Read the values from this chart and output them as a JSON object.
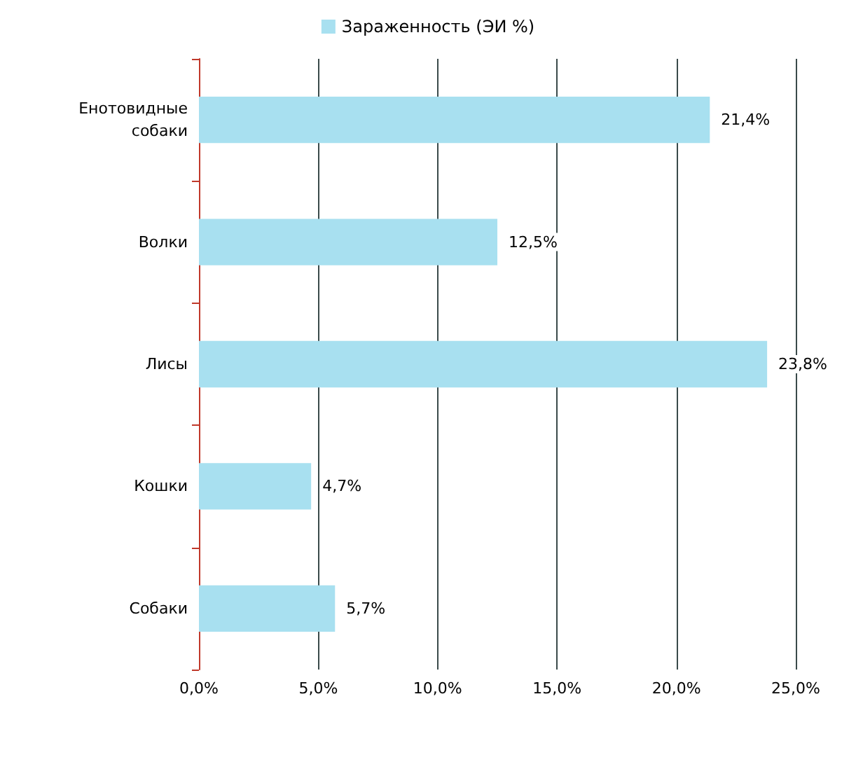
{
  "chart_data": {
    "type": "bar",
    "orientation": "horizontal",
    "categories": [
      "Енотовидные собаки",
      "Волки",
      "Лисы",
      "Кошки",
      "Собаки"
    ],
    "series": [
      {
        "name": "Зараженность (ЭИ %)",
        "color": "#a8e0f0",
        "values": [
          21.4,
          12.5,
          23.8,
          4.7,
          5.7
        ],
        "value_labels": [
          "21,4%",
          "12,5%",
          "23,8%",
          "4,7%",
          "5,7%"
        ]
      }
    ],
    "xlim": [
      0,
      25
    ],
    "xticks": [
      {
        "value": 0,
        "label": "0,0%"
      },
      {
        "value": 5,
        "label": "5,0%"
      },
      {
        "value": 10,
        "label": "10,0%"
      },
      {
        "value": 15,
        "label": "15,0%"
      },
      {
        "value": 20,
        "label": "20,0%"
      },
      {
        "value": 25,
        "label": "25,0%"
      }
    ],
    "grid": "x",
    "legend": "top"
  }
}
